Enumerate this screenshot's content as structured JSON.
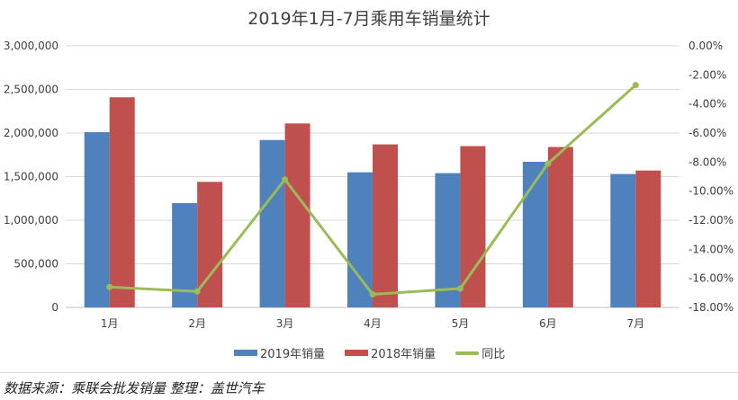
{
  "chart_data": {
    "type": "bar",
    "title": "2019年1月-7月乘用车销量统计",
    "categories": [
      "1月",
      "2月",
      "3月",
      "4月",
      "5月",
      "6月",
      "7月"
    ],
    "series": [
      {
        "name": "2019年销量",
        "type": "bar",
        "axis": "left",
        "color": "#4f81bd",
        "values": [
          2010000,
          1196000,
          1920000,
          1550000,
          1540000,
          1670000,
          1530000
        ]
      },
      {
        "name": "2018年销量",
        "type": "bar",
        "axis": "left",
        "color": "#c0504d",
        "values": [
          2410000,
          1440000,
          2110000,
          1870000,
          1850000,
          1840000,
          1570000
        ]
      },
      {
        "name": "同比",
        "type": "line",
        "axis": "right",
        "color": "#9bbb59",
        "values": [
          -16.6,
          -16.9,
          -9.2,
          -17.1,
          -16.7,
          -8.1,
          -2.7
        ]
      }
    ],
    "left_axis": {
      "range": [
        0,
        3000000
      ],
      "ticks": [
        "0",
        "500,000",
        "1,000,000",
        "1,500,000",
        "2,000,000",
        "2,500,000",
        "3,000,000"
      ]
    },
    "right_axis": {
      "range": [
        -18,
        0
      ],
      "ticks": [
        "0.00%",
        "-2.00%",
        "-4.00%",
        "-6.00%",
        "-8.00%",
        "-10.00%",
        "-12.00%",
        "-14.00%",
        "-16.00%",
        "-18.00%"
      ]
    },
    "grid": true,
    "legend": "bottom"
  },
  "footer": "数据来源：乘联会批发销量  整理：盖世汽车"
}
